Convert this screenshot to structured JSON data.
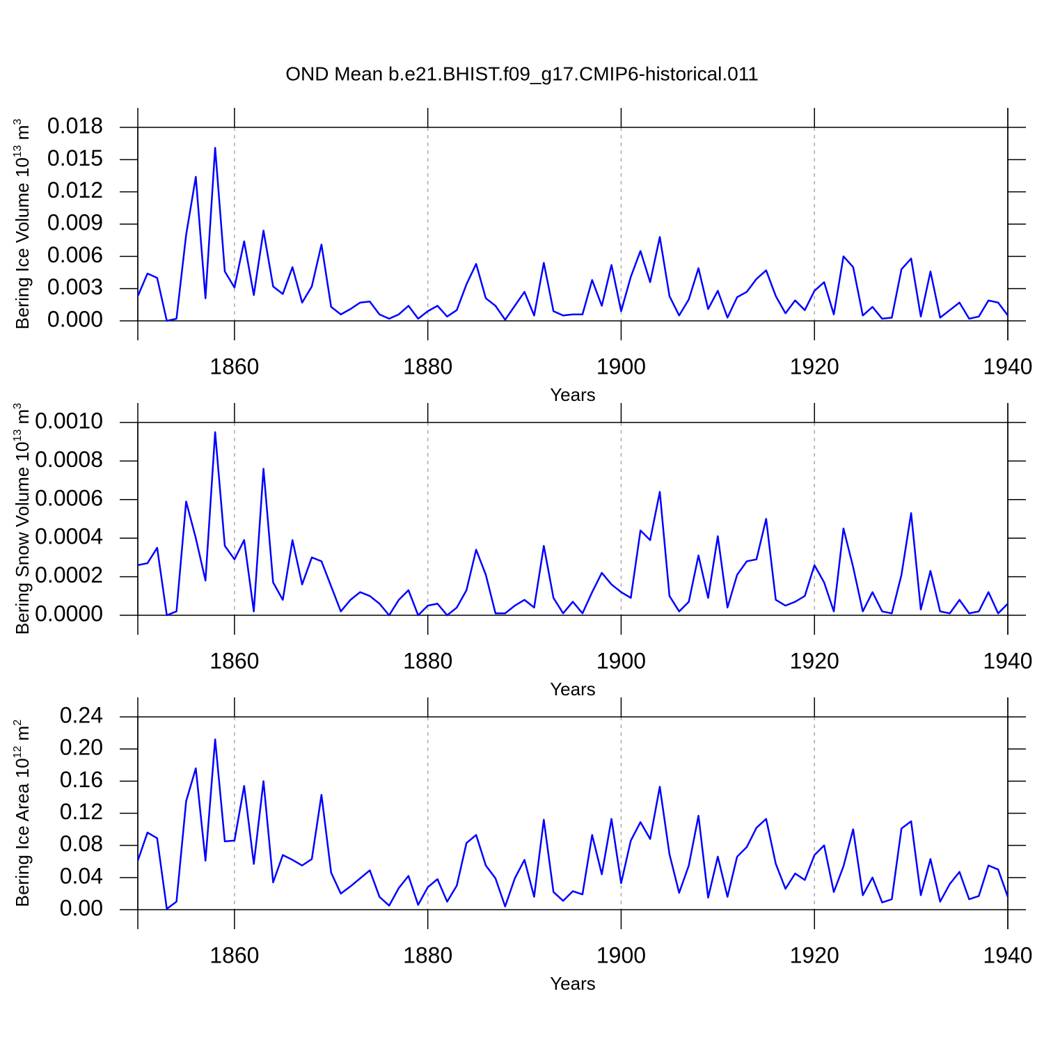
{
  "title": "OND Mean b.e21.BHIST.f09_g17.CMIP6-historical.011",
  "chart_data": [
    {
      "type": "line",
      "ylabel": [
        "Bering Ice Volume 10",
        "13",
        " m",
        "3"
      ],
      "xlabel": "Years",
      "color": "#0000ff",
      "grid": true,
      "x": [
        1850,
        1851,
        1852,
        1853,
        1854,
        1855,
        1856,
        1857,
        1858,
        1859,
        1860,
        1861,
        1862,
        1863,
        1864,
        1865,
        1866,
        1867,
        1868,
        1869,
        1870,
        1871,
        1872,
        1873,
        1874,
        1875,
        1876,
        1877,
        1878,
        1879,
        1880,
        1881,
        1882,
        1883,
        1884,
        1885,
        1886,
        1887,
        1888,
        1889,
        1890,
        1891,
        1892,
        1893,
        1894,
        1895,
        1896,
        1897,
        1898,
        1899,
        1900,
        1901,
        1902,
        1903,
        1904,
        1905,
        1906,
        1907,
        1908,
        1909,
        1910,
        1911,
        1912,
        1913,
        1914,
        1915,
        1916,
        1917,
        1918,
        1919,
        1920,
        1921,
        1922,
        1923,
        1924,
        1925,
        1926,
        1927,
        1928,
        1929,
        1930,
        1931,
        1932,
        1933,
        1934,
        1935,
        1936,
        1937,
        1938,
        1939,
        1940
      ],
      "values": [
        0.0023,
        0.0044,
        0.004,
        0.0,
        0.0002,
        0.008,
        0.0134,
        0.0021,
        0.0161,
        0.0046,
        0.0031,
        0.0074,
        0.0024,
        0.0084,
        0.0032,
        0.0025,
        0.005,
        0.0017,
        0.0032,
        0.0071,
        0.0013,
        0.0006,
        0.0011,
        0.0017,
        0.0018,
        0.0006,
        0.0002,
        0.0006,
        0.0014,
        0.0002,
        0.0009,
        0.0014,
        0.0004,
        0.001,
        0.0034,
        0.0053,
        0.0021,
        0.0014,
        0.0001,
        0.0014,
        0.0027,
        0.0005,
        0.0054,
        0.0009,
        0.0005,
        0.0006,
        0.0006,
        0.0038,
        0.0014,
        0.0052,
        0.0009,
        0.0041,
        0.0065,
        0.0036,
        0.0078,
        0.0023,
        0.0005,
        0.002,
        0.0049,
        0.0011,
        0.0028,
        0.0003,
        0.0022,
        0.0027,
        0.0039,
        0.0047,
        0.0023,
        0.0007,
        0.0019,
        0.001,
        0.0028,
        0.0036,
        0.0006,
        0.006,
        0.005,
        0.0005,
        0.0013,
        0.0002,
        0.0003,
        0.0048,
        0.0058,
        0.0004,
        0.0046,
        0.0003,
        0.001,
        0.0017,
        0.0002,
        0.0004,
        0.0019,
        0.0017,
        0.0005
      ],
      "xlim": [
        1850,
        1940
      ],
      "xticks": [
        1860,
        1880,
        1900,
        1920,
        1940
      ],
      "ylim": [
        0,
        0.018
      ],
      "yticks": [
        {
          "value": 0,
          "label": "0.000"
        },
        0.003,
        0.006,
        0.009,
        0.012,
        0.015,
        0.018
      ]
    },
    {
      "type": "line",
      "ylabel": [
        "Bering Snow Volume 10",
        "13",
        " m",
        "3"
      ],
      "xlabel": "Years",
      "color": "#0000ff",
      "grid": true,
      "x": [
        1850,
        1851,
        1852,
        1853,
        1854,
        1855,
        1856,
        1857,
        1858,
        1859,
        1860,
        1861,
        1862,
        1863,
        1864,
        1865,
        1866,
        1867,
        1868,
        1869,
        1870,
        1871,
        1872,
        1873,
        1874,
        1875,
        1876,
        1877,
        1878,
        1879,
        1880,
        1881,
        1882,
        1883,
        1884,
        1885,
        1886,
        1887,
        1888,
        1889,
        1890,
        1891,
        1892,
        1893,
        1894,
        1895,
        1896,
        1897,
        1898,
        1899,
        1900,
        1901,
        1902,
        1903,
        1904,
        1905,
        1906,
        1907,
        1908,
        1909,
        1910,
        1911,
        1912,
        1913,
        1914,
        1915,
        1916,
        1917,
        1918,
        1919,
        1920,
        1921,
        1922,
        1923,
        1924,
        1925,
        1926,
        1927,
        1928,
        1929,
        1930,
        1931,
        1932,
        1933,
        1934,
        1935,
        1936,
        1937,
        1938,
        1939,
        1940
      ],
      "values": [
        0.00026,
        0.00027,
        0.00035,
        0.0,
        2e-05,
        0.00059,
        0.0004,
        0.00018,
        0.00095,
        0.00036,
        0.00029,
        0.00039,
        2e-05,
        0.00076,
        0.00017,
        8e-05,
        0.00039,
        0.00016,
        0.0003,
        0.00028,
        0.00015,
        2e-05,
        8e-05,
        0.00012,
        0.0001,
        6e-05,
        0.0,
        8e-05,
        0.00013,
        0.0,
        5e-05,
        6e-05,
        0.0,
        4e-05,
        0.00013,
        0.00034,
        0.00021,
        1e-05,
        1e-05,
        5e-05,
        8e-05,
        4e-05,
        0.00036,
        9e-05,
        1e-05,
        7e-05,
        1e-05,
        0.00012,
        0.00022,
        0.00016,
        0.00012,
        9e-05,
        0.00044,
        0.00039,
        0.00064,
        0.0001,
        2e-05,
        7e-05,
        0.00031,
        9e-05,
        0.00041,
        4e-05,
        0.00021,
        0.00028,
        0.00029,
        0.0005,
        8e-05,
        5e-05,
        7e-05,
        0.0001,
        0.00026,
        0.00017,
        2e-05,
        0.00045,
        0.00025,
        2e-05,
        0.00012,
        2e-05,
        1e-05,
        0.00021,
        0.00053,
        3e-05,
        0.00023,
        2e-05,
        1e-05,
        8e-05,
        1e-05,
        2e-05,
        0.00012,
        1e-05,
        6e-05
      ],
      "xlim": [
        1850,
        1940
      ],
      "xticks": [
        1860,
        1880,
        1900,
        1920,
        1940
      ],
      "ylim": [
        0,
        0.001
      ],
      "yticks": [
        {
          "value": 0,
          "label": "0.0000"
        },
        0.0002,
        0.0004,
        0.0006,
        0.0008,
        {
          "value": 0.001,
          "label": "0.0010"
        }
      ]
    },
    {
      "type": "line",
      "ylabel": [
        "Bering Ice Area 10",
        "12",
        " m",
        "2"
      ],
      "xlabel": "Years",
      "color": "#0000ff",
      "grid": true,
      "x": [
        1850,
        1851,
        1852,
        1853,
        1854,
        1855,
        1856,
        1857,
        1858,
        1859,
        1860,
        1861,
        1862,
        1863,
        1864,
        1865,
        1866,
        1867,
        1868,
        1869,
        1870,
        1871,
        1872,
        1873,
        1874,
        1875,
        1876,
        1877,
        1878,
        1879,
        1880,
        1881,
        1882,
        1883,
        1884,
        1885,
        1886,
        1887,
        1888,
        1889,
        1890,
        1891,
        1892,
        1893,
        1894,
        1895,
        1896,
        1897,
        1898,
        1899,
        1900,
        1901,
        1902,
        1903,
        1904,
        1905,
        1906,
        1907,
        1908,
        1909,
        1910,
        1911,
        1912,
        1913,
        1914,
        1915,
        1916,
        1917,
        1918,
        1919,
        1920,
        1921,
        1922,
        1923,
        1924,
        1925,
        1926,
        1927,
        1928,
        1929,
        1930,
        1931,
        1932,
        1933,
        1934,
        1935,
        1936,
        1937,
        1938,
        1939,
        1940
      ],
      "values": [
        0.061,
        0.096,
        0.089,
        0.001,
        0.01,
        0.135,
        0.176,
        0.061,
        0.212,
        0.085,
        0.086,
        0.154,
        0.057,
        0.16,
        0.034,
        0.068,
        0.062,
        0.055,
        0.063,
        0.143,
        0.046,
        0.02,
        0.029,
        0.039,
        0.049,
        0.016,
        0.005,
        0.027,
        0.042,
        0.006,
        0.028,
        0.038,
        0.01,
        0.03,
        0.083,
        0.093,
        0.055,
        0.039,
        0.004,
        0.039,
        0.062,
        0.016,
        0.112,
        0.022,
        0.011,
        0.023,
        0.019,
        0.093,
        0.044,
        0.113,
        0.033,
        0.086,
        0.109,
        0.088,
        0.153,
        0.069,
        0.021,
        0.055,
        0.117,
        0.015,
        0.066,
        0.016,
        0.066,
        0.078,
        0.102,
        0.113,
        0.057,
        0.026,
        0.045,
        0.037,
        0.068,
        0.08,
        0.022,
        0.054,
        0.1,
        0.018,
        0.04,
        0.009,
        0.013,
        0.101,
        0.11,
        0.018,
        0.063,
        0.01,
        0.032,
        0.047,
        0.013,
        0.017,
        0.055,
        0.05,
        0.016
      ],
      "xlim": [
        1850,
        1940
      ],
      "xticks": [
        1860,
        1880,
        1900,
        1920,
        1940
      ],
      "ylim": [
        0,
        0.24
      ],
      "yticks": [
        {
          "value": 0,
          "label": "0.00"
        },
        0.04,
        0.08,
        0.12,
        0.16,
        {
          "value": 0.2,
          "label": "0.20"
        },
        0.24
      ]
    }
  ]
}
